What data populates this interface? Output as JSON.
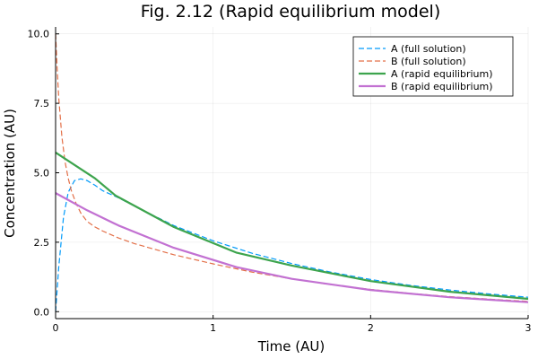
{
  "chart_data": {
    "type": "line",
    "title": "Fig. 2.12 (Rapid equilibrium model)",
    "xlabel": "Time (AU)",
    "ylabel": "Concentration (AU)",
    "xlim": [
      0,
      3
    ],
    "ylim": [
      -0.25,
      10.25
    ],
    "xticks": [
      0,
      1,
      2,
      3
    ],
    "xtick_labels": [
      "0",
      "1",
      "2",
      "3"
    ],
    "yticks": [
      0,
      2.5,
      5,
      7.5,
      10
    ],
    "ytick_labels": [
      "0.0",
      "2.5",
      "5.0",
      "7.5",
      "10.0"
    ],
    "grid": true,
    "legend_position": "top-right",
    "series": [
      {
        "name": "A (full solution)",
        "color": "#009AFA",
        "dash": "dashed",
        "x": [
          0,
          0.02,
          0.05,
          0.08,
          0.12,
          0.16,
          0.2,
          0.25,
          0.3,
          0.4,
          0.5,
          0.75,
          1.0,
          1.25,
          1.5,
          1.75,
          2.0,
          2.25,
          2.5,
          2.75,
          3.0
        ],
        "y": [
          0.0,
          1.6,
          3.4,
          4.3,
          4.72,
          4.78,
          4.72,
          4.55,
          4.35,
          4.1,
          3.8,
          3.1,
          2.55,
          2.1,
          1.73,
          1.42,
          1.16,
          0.95,
          0.78,
          0.64,
          0.52
        ]
      },
      {
        "name": "B (full solution)",
        "color": "#E36F47",
        "dash": "dashed",
        "x": [
          0,
          0.01,
          0.02,
          0.04,
          0.06,
          0.08,
          0.1,
          0.13,
          0.16,
          0.2,
          0.25,
          0.3,
          0.4,
          0.5,
          0.75,
          1.0,
          1.25,
          1.5,
          1.75,
          2.0,
          2.25,
          2.5,
          2.75,
          3.0
        ],
        "y": [
          10.0,
          8.7,
          7.7,
          6.3,
          5.4,
          4.8,
          4.35,
          3.9,
          3.55,
          3.25,
          3.05,
          2.9,
          2.65,
          2.45,
          2.05,
          1.72,
          1.42,
          1.18,
          0.97,
          0.8,
          0.66,
          0.54,
          0.45,
          0.37
        ]
      },
      {
        "name": "A (rapid equilibrium)",
        "color": "#3DA44D",
        "dash": "solid",
        "x": [
          0,
          0.25,
          0.38,
          0.75,
          1.15,
          1.5,
          2.0,
          2.5,
          3.0
        ],
        "y": [
          5.73,
          4.8,
          4.18,
          3.05,
          2.12,
          1.66,
          1.1,
          0.72,
          0.46
        ]
      },
      {
        "name": "B (rapid equilibrium)",
        "color": "#C271D2",
        "dash": "solid",
        "x": [
          0,
          0.2,
          0.4,
          0.75,
          1.15,
          1.5,
          2.0,
          2.5,
          3.0
        ],
        "y": [
          4.27,
          3.65,
          3.1,
          2.3,
          1.6,
          1.18,
          0.78,
          0.52,
          0.34
        ]
      }
    ]
  }
}
